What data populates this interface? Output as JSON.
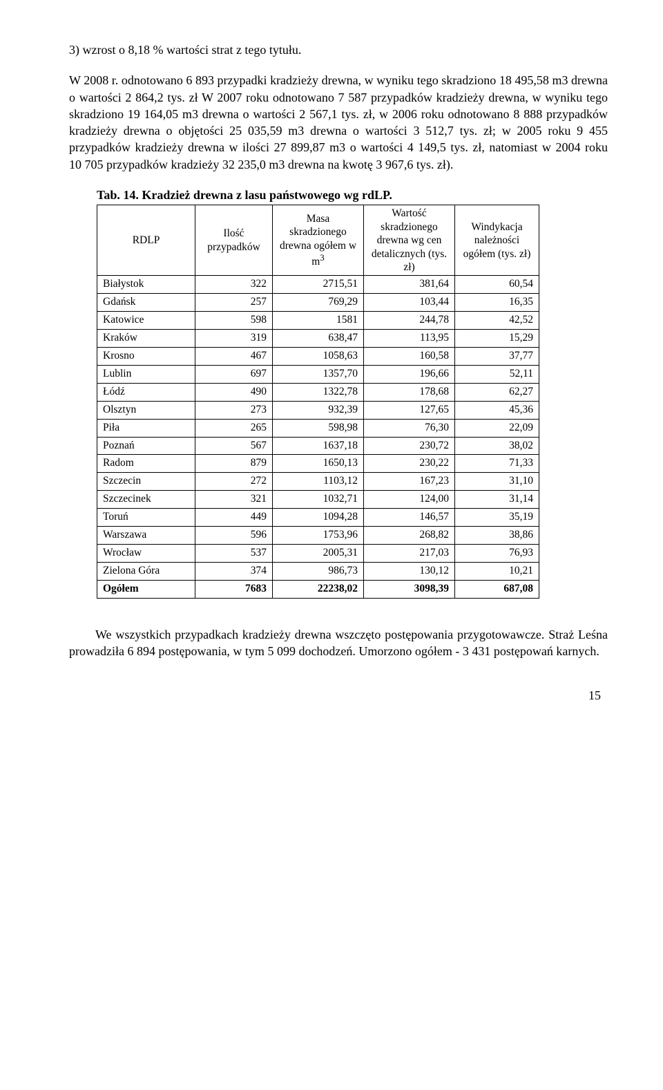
{
  "para1": "3) wzrost o 8,18 % wartości strat z tego tytułu.",
  "para2": "     W 2008 r. odnotowano 6 893 przypadki kradzieży drewna, w wyniku tego skradziono 18 495,58 m3 drewna o wartości 2 864,2 tys. zł W 2007 roku odnotowano 7 587 przypadków kradzieży drewna, w wyniku tego skradziono 19 164,05 m3 drewna o wartości 2 567,1 tys. zł, w 2006 roku odnotowano 8 888 przypadków kradzieży drewna o objętości 25 035,59 m3 drewna o wartości 3 512,7 tys. zł; w 2005 roku 9 455 przypadków kradzieży drewna w ilości 27 899,87 m3 o wartości 4 149,5 tys. zł, natomiast w 2004 roku 10 705 przypadków kradzieży 32 235,0 m3 drewna na kwotę 3 967,6 tys. zł).",
  "table": {
    "title": "Tab. 14. Kradzież drewna z lasu państwowego wg rdLP.",
    "columns": {
      "c0": "RDLP",
      "c1": "Ilość przypadków",
      "c2": "Masa skradzionego drewna ogółem w m",
      "c2_sup": "3",
      "c3": "Wartość skradzionego drewna wg cen detalicznych (tys. zł)",
      "c4": "Windykacja należności ogółem (tys. zł)"
    },
    "rows": [
      {
        "n": "Białystok",
        "a": "322",
        "b": "2715,51",
        "c": "381,64",
        "d": "60,54"
      },
      {
        "n": "Gdańsk",
        "a": "257",
        "b": "769,29",
        "c": "103,44",
        "d": "16,35"
      },
      {
        "n": "Katowice",
        "a": "598",
        "b": "1581",
        "c": "244,78",
        "d": "42,52"
      },
      {
        "n": "Kraków",
        "a": "319",
        "b": "638,47",
        "c": "113,95",
        "d": "15,29"
      },
      {
        "n": "Krosno",
        "a": "467",
        "b": "1058,63",
        "c": "160,58",
        "d": "37,77"
      },
      {
        "n": "Lublin",
        "a": "697",
        "b": "1357,70",
        "c": "196,66",
        "d": "52,11"
      },
      {
        "n": "Łódź",
        "a": "490",
        "b": "1322,78",
        "c": "178,68",
        "d": "62,27"
      },
      {
        "n": "Olsztyn",
        "a": "273",
        "b": "932,39",
        "c": "127,65",
        "d": "45,36"
      },
      {
        "n": "Piła",
        "a": "265",
        "b": "598,98",
        "c": "76,30",
        "d": "22,09"
      },
      {
        "n": "Poznań",
        "a": "567",
        "b": "1637,18",
        "c": "230,72",
        "d": "38,02"
      },
      {
        "n": "Radom",
        "a": "879",
        "b": "1650,13",
        "c": "230,22",
        "d": "71,33"
      },
      {
        "n": "Szczecin",
        "a": "272",
        "b": "1103,12",
        "c": "167,23",
        "d": "31,10"
      },
      {
        "n": "Szczecinek",
        "a": "321",
        "b": "1032,71",
        "c": "124,00",
        "d": "31,14"
      },
      {
        "n": "Toruń",
        "a": "449",
        "b": "1094,28",
        "c": "146,57",
        "d": "35,19"
      },
      {
        "n": "Warszawa",
        "a": "596",
        "b": "1753,96",
        "c": "268,82",
        "d": "38,86"
      },
      {
        "n": "Wrocław",
        "a": "537",
        "b": "2005,31",
        "c": "217,03",
        "d": "76,93"
      },
      {
        "n": "Zielona Góra",
        "a": "374",
        "b": "986,73",
        "c": "130,12",
        "d": "10,21"
      }
    ],
    "total": {
      "n": "Ogółem",
      "a": "7683",
      "b": "22238,02",
      "c": "3098,39",
      "d": "687,08"
    }
  },
  "para3": "We wszystkich przypadkach kradzieży drewna wszczęto postępowania przygotowawcze. Straż Leśna prowadziła 6 894 postępowania, w tym 5 099 dochodzeń. Umorzono ogółem - 3 431 postępowań karnych.",
  "page": "15"
}
